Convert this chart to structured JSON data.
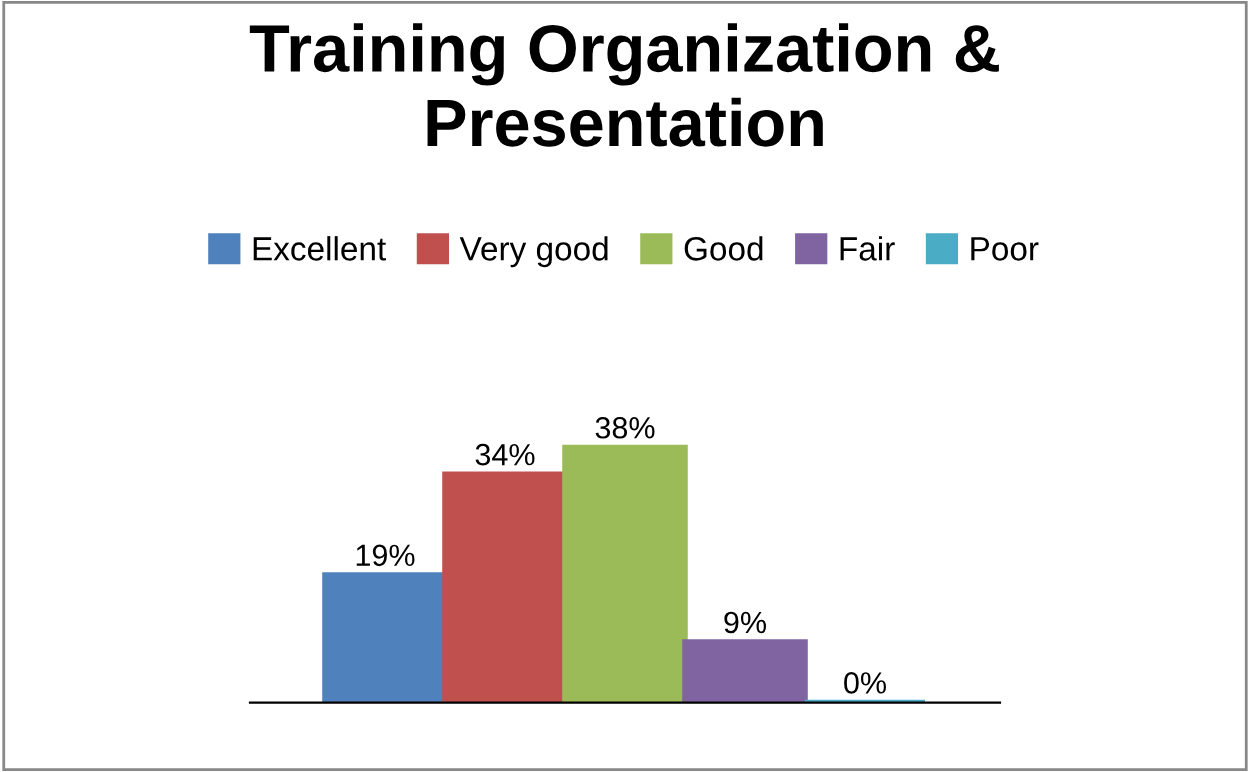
{
  "chart_data": {
    "type": "bar",
    "title": "Training Organization &\nPresentation",
    "categories": [
      null
    ],
    "series": [
      {
        "name": "Excellent",
        "color": "#4f81bd",
        "values": [
          19
        ],
        "value_labels": [
          "19%"
        ]
      },
      {
        "name": "Very good",
        "color": "#c0504d",
        "values": [
          34
        ],
        "value_labels": [
          "34%"
        ]
      },
      {
        "name": "Good",
        "color": "#9bbb59",
        "values": [
          38
        ],
        "value_labels": [
          "38%"
        ]
      },
      {
        "name": "Fair",
        "color": "#8064a2",
        "values": [
          9
        ],
        "value_labels": [
          "9%"
        ]
      },
      {
        "name": "Poor",
        "color": "#4bacc6",
        "values": [
          0
        ],
        "value_labels": [
          "0%"
        ]
      }
    ],
    "legend": "top",
    "grid": false
  }
}
